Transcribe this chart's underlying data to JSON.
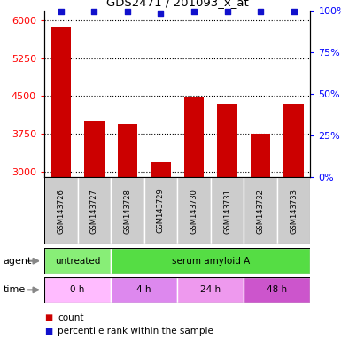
{
  "title": "GDS2471 / 201093_x_at",
  "samples": [
    "GSM143726",
    "GSM143727",
    "GSM143728",
    "GSM143729",
    "GSM143730",
    "GSM143731",
    "GSM143732",
    "GSM143733"
  ],
  "counts": [
    5850,
    4000,
    3950,
    3200,
    4480,
    4350,
    3750,
    4350
  ],
  "percentile_ranks": [
    99,
    99,
    99,
    98,
    99,
    99,
    99,
    99
  ],
  "ylim_left": [
    2900,
    6200
  ],
  "ylim_right": [
    0,
    100
  ],
  "yticks_left": [
    3000,
    3750,
    4500,
    5250,
    6000
  ],
  "yticks_right": [
    0,
    25,
    50,
    75,
    100
  ],
  "bar_color": "#cc0000",
  "dot_color": "#1111cc",
  "agent_groups": [
    {
      "label": "untreated",
      "start": 0,
      "end": 2,
      "color": "#88ee77"
    },
    {
      "label": "serum amyloid A",
      "start": 2,
      "end": 8,
      "color": "#55dd44"
    }
  ],
  "time_groups": [
    {
      "label": "0 h",
      "start": 0,
      "end": 2,
      "color": "#ffbbff"
    },
    {
      "label": "4 h",
      "start": 2,
      "end": 4,
      "color": "#dd88ee"
    },
    {
      "label": "24 h",
      "start": 4,
      "end": 6,
      "color": "#ee99ee"
    },
    {
      "label": "48 h",
      "start": 6,
      "end": 8,
      "color": "#cc55cc"
    }
  ],
  "legend_count_color": "#cc0000",
  "legend_dot_color": "#1111cc",
  "background_color": "#ffffff",
  "tick_bg_color": "#cccccc",
  "row_label_agent": "agent",
  "row_label_time": "time"
}
